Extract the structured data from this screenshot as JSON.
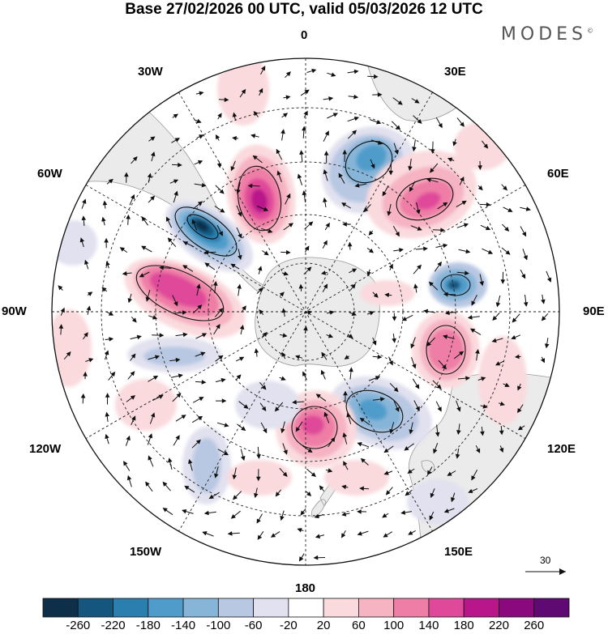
{
  "title": "Base 27/02/2026 00 UTC, valid 05/03/2026 12 UTC",
  "brand": "MODES",
  "brand_mark": "©",
  "map": {
    "projection": "south-polar-stereographic",
    "longitude_labels": [
      "0",
      "30E",
      "60E",
      "90E",
      "120E",
      "150E",
      "180",
      "150W",
      "120W",
      "90W",
      "60W",
      "30W"
    ]
  },
  "colorbar": {
    "ticks": [
      "-260",
      "-220",
      "-180",
      "-140",
      "-100",
      "-60",
      "-20",
      "20",
      "60",
      "100",
      "140",
      "180",
      "220",
      "260"
    ],
    "colors": [
      "#0d2f4a",
      "#14567d",
      "#2a7fae",
      "#4f9ccb",
      "#87b5d8",
      "#b8c8e2",
      "#e1e1ef",
      "#ffffff",
      "#fadadd",
      "#f6b3c2",
      "#ee7ea6",
      "#e0489a",
      "#b8168a",
      "#8a0a7d",
      "#5e0a72"
    ]
  },
  "reference_vector": "30"
}
